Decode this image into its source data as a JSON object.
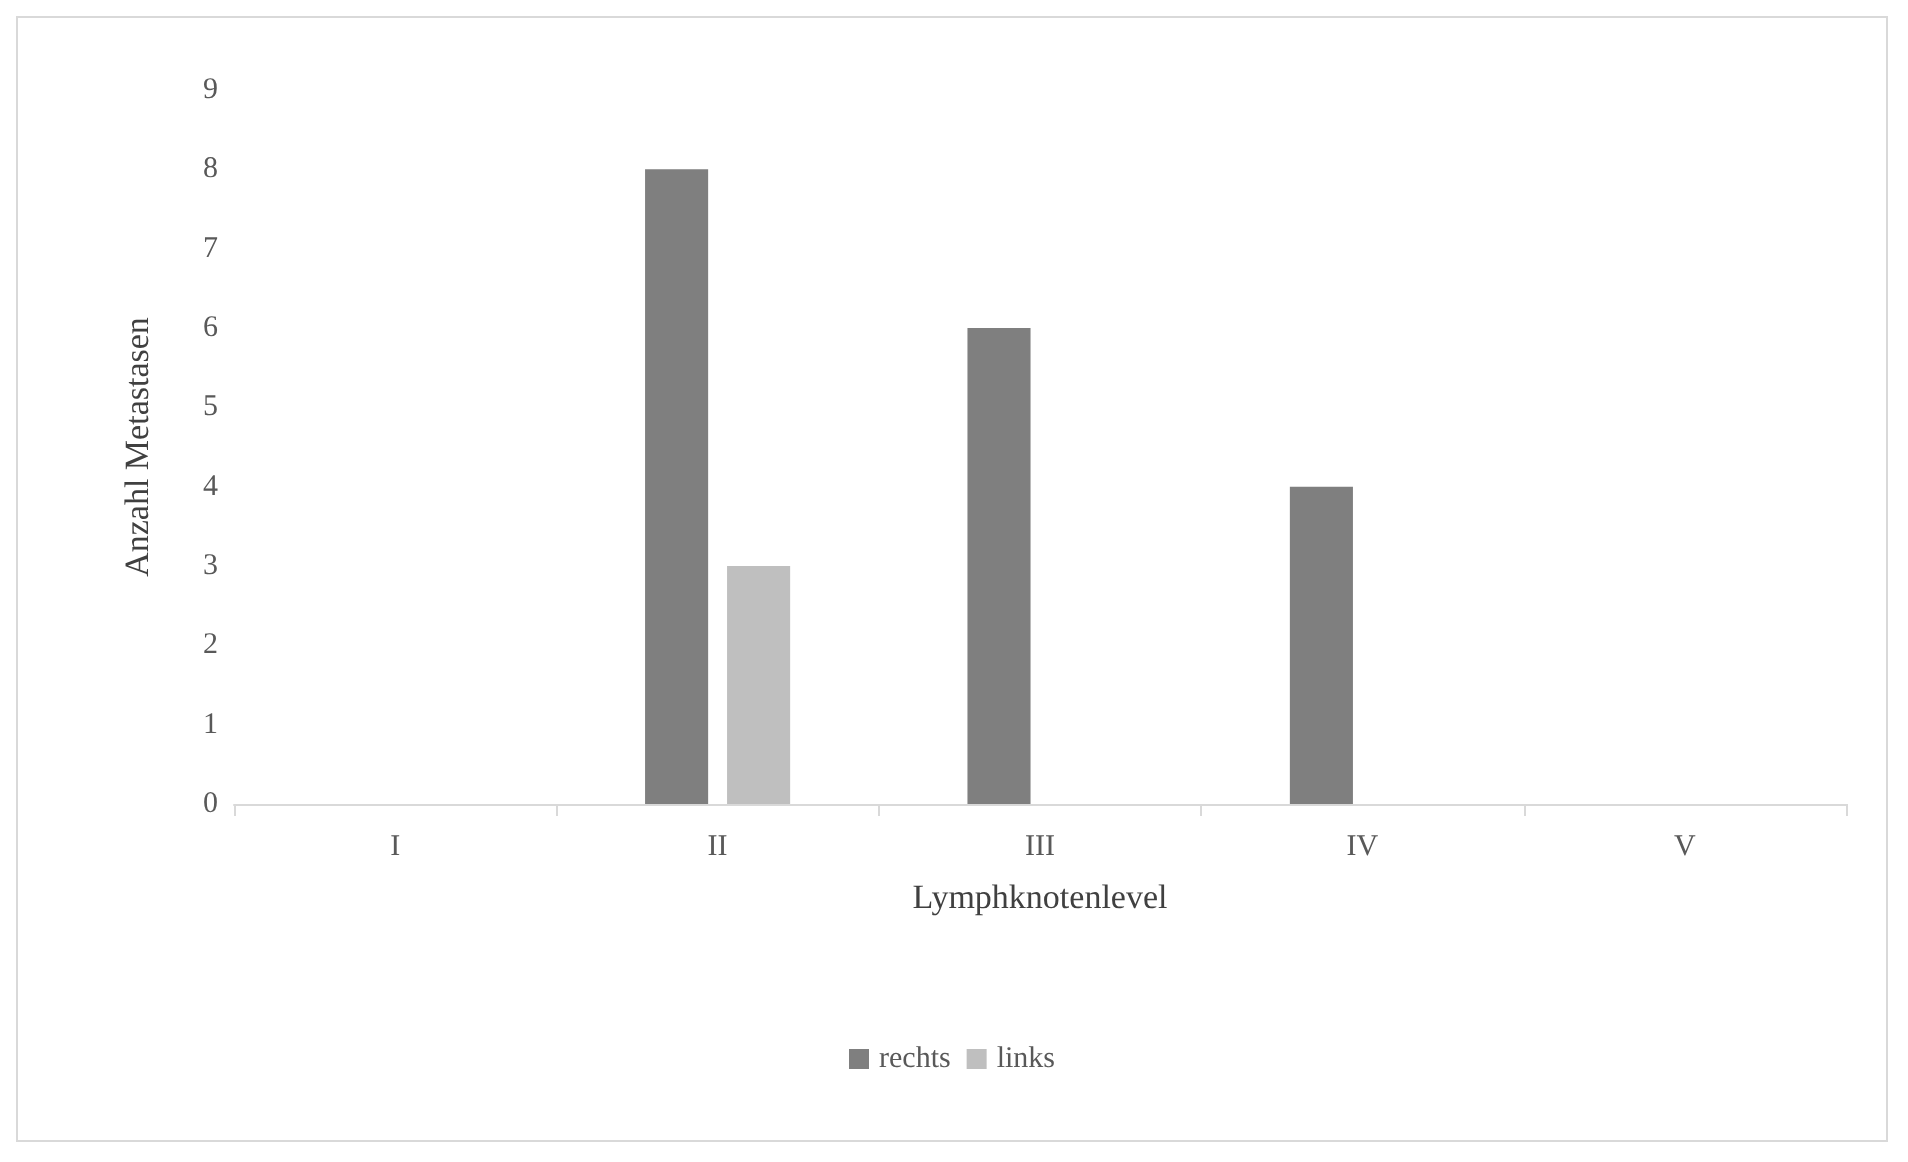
{
  "chart_data": {
    "type": "bar",
    "xlabel": "Lymphknotenlevel",
    "ylabel": "Anzahl Metastasen",
    "categories": [
      "I",
      "II",
      "III",
      "IV",
      "V"
    ],
    "series": [
      {
        "name": "rechts",
        "color": "#7f7f7f",
        "values": [
          0,
          8,
          6,
          4,
          0
        ]
      },
      {
        "name": "links",
        "color": "#bfbfbf",
        "values": [
          0,
          3,
          0,
          0,
          0
        ]
      }
    ],
    "ylim": [
      0,
      9
    ],
    "yticks": [
      0,
      1,
      2,
      3,
      4,
      5,
      6,
      7,
      8,
      9
    ],
    "grid": false,
    "legend": "bottom"
  }
}
